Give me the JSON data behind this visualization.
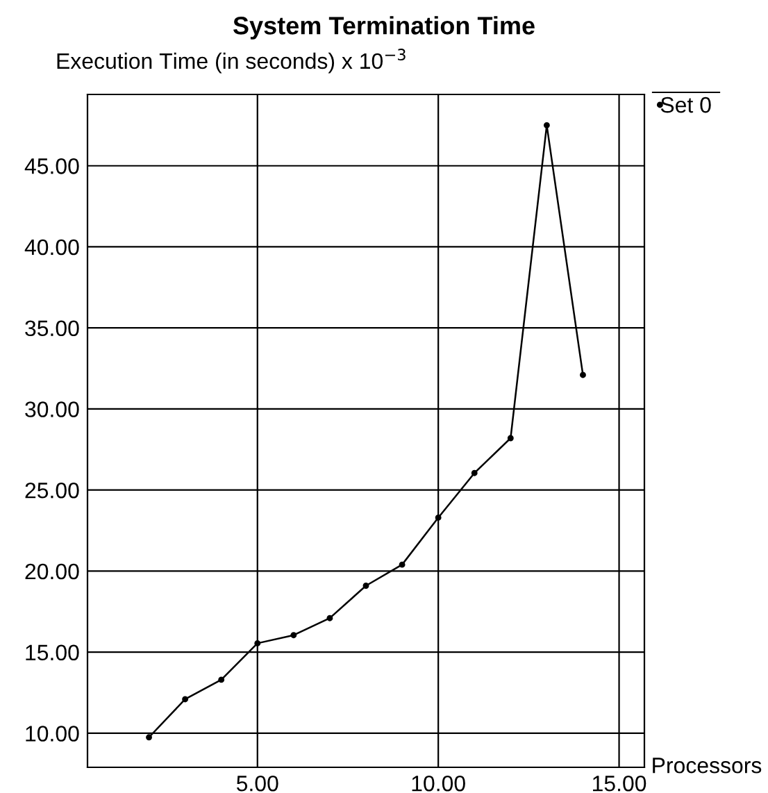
{
  "chart_data": {
    "type": "line",
    "title": "System Termination Time",
    "ylabel": "Execution Time (in seconds) x 10$^{−3}$",
    "xlabel": "Processors",
    "x": [
      2,
      3,
      4,
      5,
      6,
      7,
      8,
      9,
      10,
      11,
      12,
      13,
      14
    ],
    "series": [
      {
        "name": "Set 0",
        "color": "#000000",
        "values": [
          9.75,
          12.1,
          13.3,
          15.55,
          16.05,
          17.1,
          19.1,
          20.4,
          23.3,
          26.05,
          28.2,
          47.5,
          32.1
        ]
      }
    ],
    "xlim": [
      0.3,
      15.7
    ],
    "xticks": [
      {
        "value": 5,
        "label": "5.00"
      },
      {
        "value": 10,
        "label": "10.00"
      },
      {
        "value": 15,
        "label": "15.00"
      }
    ],
    "ylim": [
      7.9,
      49.4
    ],
    "yticks": [
      {
        "value": 10,
        "label": "10.00"
      },
      {
        "value": 15,
        "label": "15.00"
      },
      {
        "value": 20,
        "label": "20.00"
      },
      {
        "value": 25,
        "label": "25.00"
      },
      {
        "value": 30,
        "label": "30.00"
      },
      {
        "value": 35,
        "label": "35.00"
      },
      {
        "value": 40,
        "label": "40.00"
      },
      {
        "value": 45,
        "label": "45.00"
      }
    ],
    "grid": true,
    "legend": "top right",
    "marker": "circle",
    "line_style": "solid"
  }
}
